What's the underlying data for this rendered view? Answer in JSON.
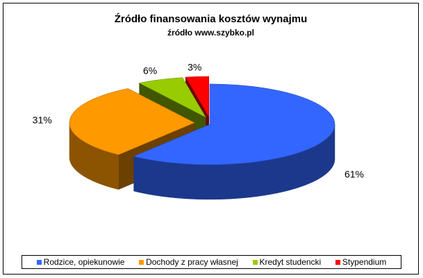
{
  "chart_data": {
    "type": "pie",
    "title": "Źródło finansowania kosztów wynajmu",
    "subtitle": "źródło www.szybko.pl",
    "categories": [
      "Rodzice, opiekunowie",
      "Dochody z pracy własnej",
      "Kredyt studencki",
      "Stypendium"
    ],
    "values": [
      61,
      31,
      6,
      3
    ],
    "data_labels": [
      "61%",
      "31%",
      "6%",
      "3%"
    ],
    "colors": [
      "#3366FF",
      "#FF9900",
      "#99CC00",
      "#FF0000"
    ],
    "exploded": true,
    "three_d": true,
    "legend_position": "bottom"
  }
}
